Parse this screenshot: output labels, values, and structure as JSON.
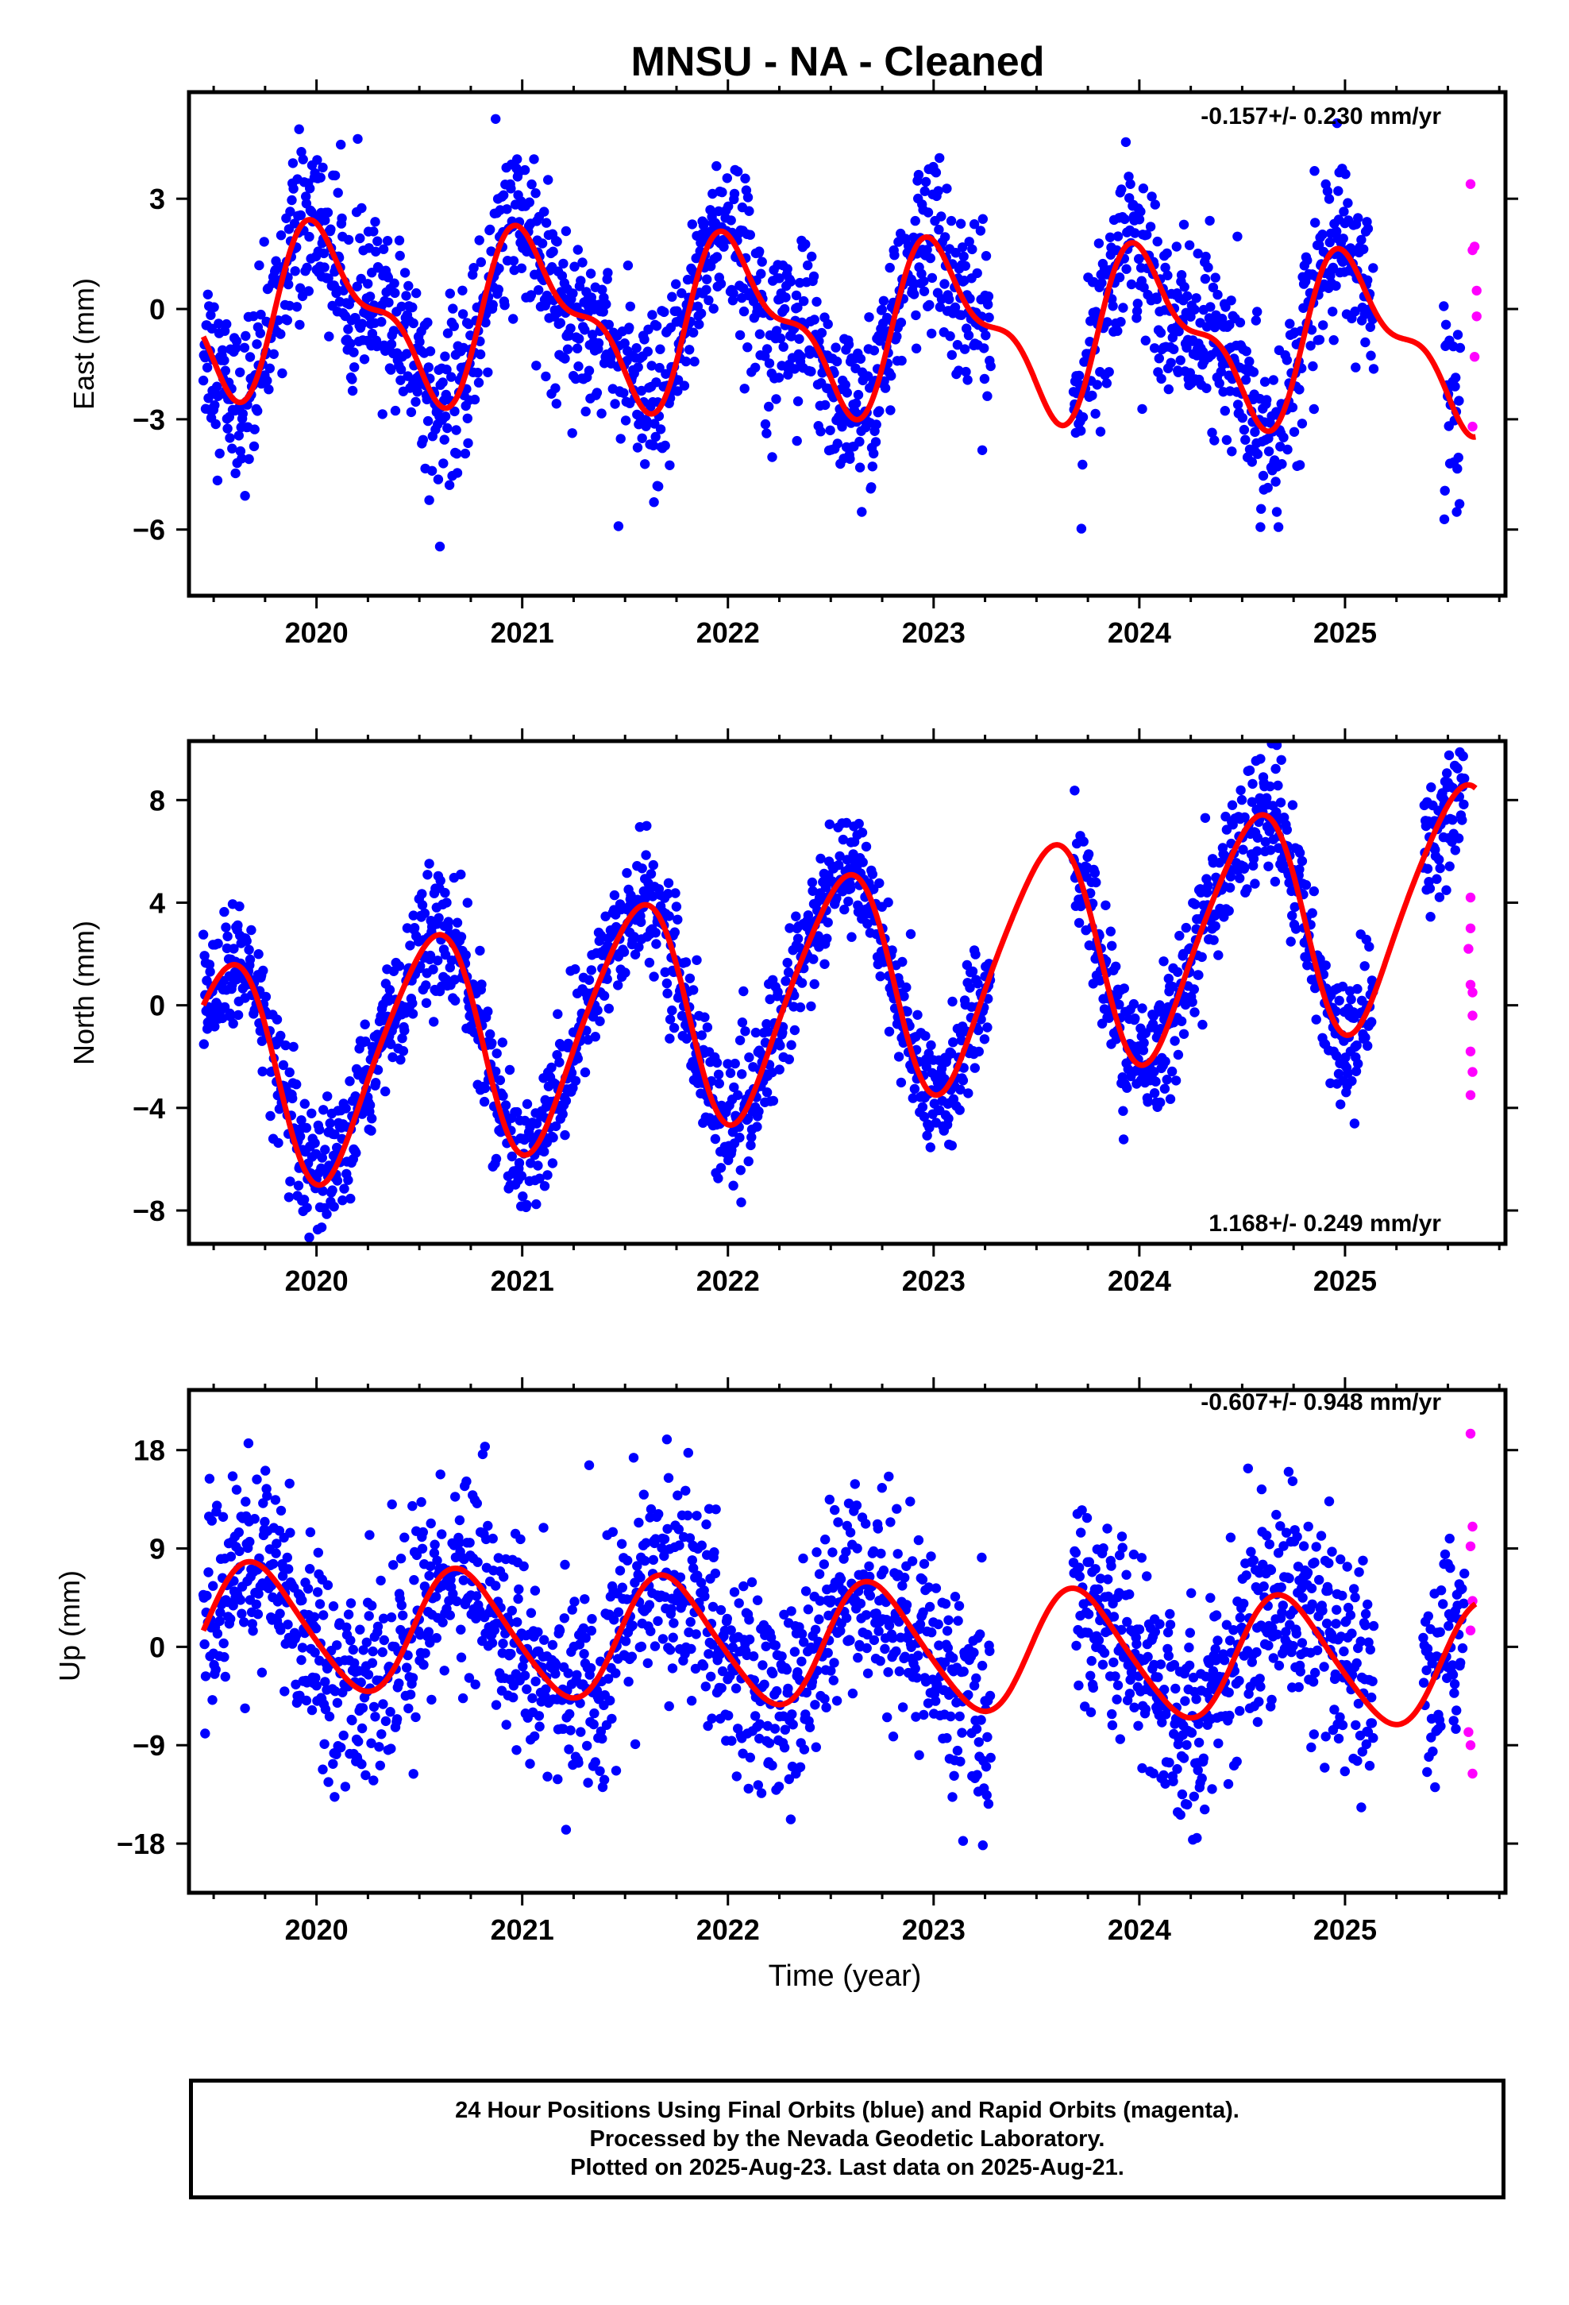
{
  "title": "MNSU  - NA - Cleaned",
  "colors": {
    "final": "#0000ff",
    "rapid": "#ff00ff",
    "fit": "#ff0000",
    "axis": "#000000"
  },
  "chart_data": [
    {
      "type": "scatter",
      "component": "East",
      "ylabel": "East (mm)",
      "xlabel": "",
      "xlim": [
        2019.38,
        2025.78
      ],
      "ylim": [
        -7.8,
        5.9
      ],
      "yticks": [
        -6,
        -3,
        0,
        3
      ],
      "xticks": [
        2020,
        2021,
        2022,
        2023,
        2024,
        2025
      ],
      "rate_label": "-0.157+/- 0.230 mm/yr",
      "rate_position": "top-right",
      "fit": {
        "mean": -0.45,
        "trend": -0.157,
        "ref_year": 2022.5,
        "annual_amp": 2.0,
        "annual_peak": 2020.05,
        "semiannual_amp": 0.9,
        "semiannual_peak": 2019.92
      },
      "scatter_sigma": 1.15,
      "final_segments": [
        [
          2019.45,
          2023.28
        ],
        [
          2023.68,
          2025.14
        ],
        [
          2025.48,
          2025.56
        ]
      ],
      "rapid_points": [
        {
          "x": 2025.61,
          "y": 3.4
        },
        {
          "x": 2025.62,
          "y": 1.6
        },
        {
          "x": 2025.63,
          "y": 1.7
        },
        {
          "x": 2025.64,
          "y": 0.5
        },
        {
          "x": 2025.64,
          "y": -0.2
        },
        {
          "x": 2025.62,
          "y": -3.2
        },
        {
          "x": 2025.63,
          "y": -1.3
        }
      ]
    },
    {
      "type": "scatter",
      "component": "North",
      "ylabel": "North (mm)",
      "xlabel": "",
      "xlim": [
        2019.38,
        2025.78
      ],
      "ylim": [
        -9.3,
        10.3
      ],
      "yticks": [
        -8,
        -4,
        0,
        4,
        8
      ],
      "xticks": [
        2020,
        2021,
        2022,
        2023,
        2024,
        2025
      ],
      "rate_label": "1.168+/- 0.249 mm/yr",
      "rate_position": "bottom-right",
      "fit": {
        "mean": 0.6,
        "trend": 1.168,
        "ref_year": 2022.5,
        "annual_amp": 4.4,
        "annual_peak": 2019.55,
        "semiannual_amp": 0.6,
        "semiannual_peak": 2019.7
      },
      "scatter_sigma": 1.25,
      "final_segments": [
        [
          2019.45,
          2023.28
        ],
        [
          2023.68,
          2025.14
        ],
        [
          2025.38,
          2025.58
        ]
      ],
      "rapid_points": [
        {
          "x": 2025.61,
          "y": 4.2
        },
        {
          "x": 2025.61,
          "y": 3.0
        },
        {
          "x": 2025.6,
          "y": 2.2
        },
        {
          "x": 2025.61,
          "y": 0.8
        },
        {
          "x": 2025.62,
          "y": 0.5
        },
        {
          "x": 2025.62,
          "y": -0.4
        },
        {
          "x": 2025.61,
          "y": -1.8
        },
        {
          "x": 2025.62,
          "y": -2.6
        },
        {
          "x": 2025.61,
          "y": -3.5
        }
      ]
    },
    {
      "type": "scatter",
      "component": "Up",
      "ylabel": "Up (mm)",
      "xlabel": "Time (year)",
      "xlim": [
        2019.38,
        2025.78
      ],
      "ylim": [
        -22.5,
        23.5
      ],
      "yticks": [
        -18,
        -9,
        0,
        9,
        18
      ],
      "xticks": [
        2020,
        2021,
        2022,
        2023,
        2024,
        2025
      ],
      "rate_label": "-0.607+/- 0.948 mm/yr",
      "rate_position": "top-right",
      "fit": {
        "mean": 0.2,
        "trend": -0.607,
        "ref_year": 2022.5,
        "annual_amp": 5.6,
        "annual_peak": 2019.71,
        "semiannual_amp": 0.7,
        "semiannual_peak": 2019.6
      },
      "scatter_sigma": 4.8,
      "final_segments": [
        [
          2019.45,
          2023.28
        ],
        [
          2023.68,
          2025.14
        ],
        [
          2025.38,
          2025.58
        ]
      ],
      "rapid_points": [
        {
          "x": 2025.61,
          "y": 19.5
        },
        {
          "x": 2025.62,
          "y": 11.0
        },
        {
          "x": 2025.61,
          "y": 9.2
        },
        {
          "x": 2025.62,
          "y": 4.2
        },
        {
          "x": 2025.61,
          "y": 1.5
        },
        {
          "x": 2025.6,
          "y": -7.8
        },
        {
          "x": 2025.61,
          "y": -9.0
        },
        {
          "x": 2025.62,
          "y": -11.6
        }
      ]
    }
  ],
  "footer": {
    "line1": "24 Hour Positions Using Final Orbits (blue) and Rapid Orbits (magenta).",
    "line2": "Processed by the Nevada Geodetic Laboratory.",
    "line3": "Plotted on 2025-Aug-23. Last data on 2025-Aug-21."
  }
}
